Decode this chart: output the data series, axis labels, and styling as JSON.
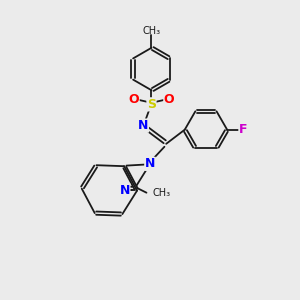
{
  "background_color": "#ebebeb",
  "bond_color": "#1a1a1a",
  "atom_colors": {
    "S": "#cccc00",
    "O": "#ff0000",
    "N": "#0000ff",
    "F": "#cc00cc",
    "C": "#1a1a1a"
  },
  "figsize": [
    3.0,
    3.0
  ],
  "dpi": 100,
  "lw": 1.3,
  "ring_r": 0.72,
  "xlim": [
    0,
    10
  ],
  "ylim": [
    0,
    10
  ]
}
